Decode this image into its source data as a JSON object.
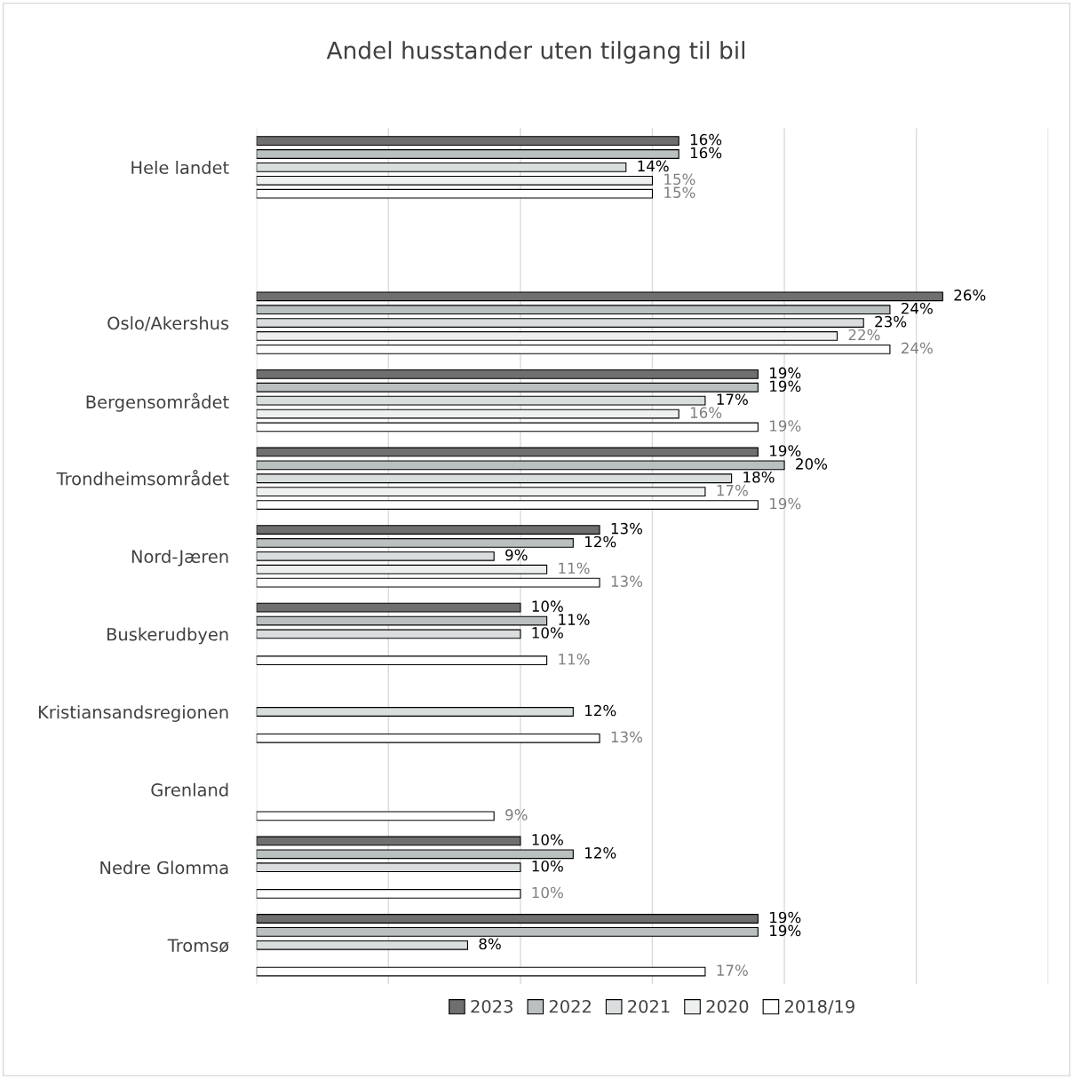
{
  "chart_data": {
    "type": "bar",
    "orientation": "horizontal",
    "title": "Andel husstander uten tilgang til bil",
    "categories": [
      "Hele landet",
      null,
      "Oslo/Akershus",
      "Bergensområdet",
      "Trondheimsområdet",
      "Nord-Jæren",
      "Buskerudbyen",
      "Kristiansandsregionen",
      "Grenland",
      "Nedre Glomma",
      "Tromsø"
    ],
    "series": [
      {
        "name": "2023",
        "color": "#6f6f6f",
        "values": [
          16,
          null,
          26,
          19,
          19,
          13,
          10,
          null,
          null,
          10,
          19
        ],
        "value_labels": [
          "16%",
          null,
          "26%",
          "19%",
          "19%",
          "13%",
          "10%",
          null,
          null,
          "10%",
          "19%"
        ]
      },
      {
        "name": "2022",
        "color": "#babfbf",
        "values": [
          16,
          null,
          24,
          19,
          20,
          12,
          11,
          null,
          null,
          12,
          19
        ],
        "value_labels": [
          "16%",
          null,
          "24%",
          "19%",
          "20%",
          "12%",
          "11%",
          null,
          null,
          "12%",
          "19%"
        ]
      },
      {
        "name": "2021",
        "color": "#d9dddd",
        "values": [
          14,
          null,
          23,
          17,
          18,
          9,
          10,
          12,
          null,
          10,
          8
        ],
        "value_labels": [
          "14%",
          null,
          "23%",
          "17%",
          "18%",
          "9%",
          "10%",
          "12%",
          null,
          "10%",
          "8%"
        ]
      },
      {
        "name": "2020",
        "color": "#eef0f0",
        "values": [
          15,
          null,
          22,
          16,
          17,
          11,
          null,
          null,
          null,
          null,
          null
        ],
        "value_labels": [
          "15%",
          null,
          "22%",
          "16%",
          "17%",
          "11%",
          null,
          null,
          null,
          null,
          null
        ]
      },
      {
        "name": "2018/19",
        "color": "#ffffff",
        "values": [
          15,
          null,
          24,
          19,
          19,
          13,
          11,
          13,
          9,
          10,
          17
        ],
        "value_labels": [
          "15%",
          null,
          "24%",
          "19%",
          "19%",
          "13%",
          "11%",
          "13%",
          "9%",
          "10%",
          "17%"
        ]
      }
    ],
    "xlim": [
      0,
      30
    ],
    "xticks": [
      {
        "value": 0,
        "label": null
      },
      {
        "value": 5,
        "label": null
      },
      {
        "value": 10,
        "label": null
      },
      {
        "value": 15,
        "label": null
      },
      {
        "value": 20,
        "label": null
      },
      {
        "value": 25,
        "label": null
      },
      {
        "value": 30,
        "label": null
      }
    ],
    "tick_labels": "y",
    "grid": "x",
    "legend": "bottom"
  }
}
